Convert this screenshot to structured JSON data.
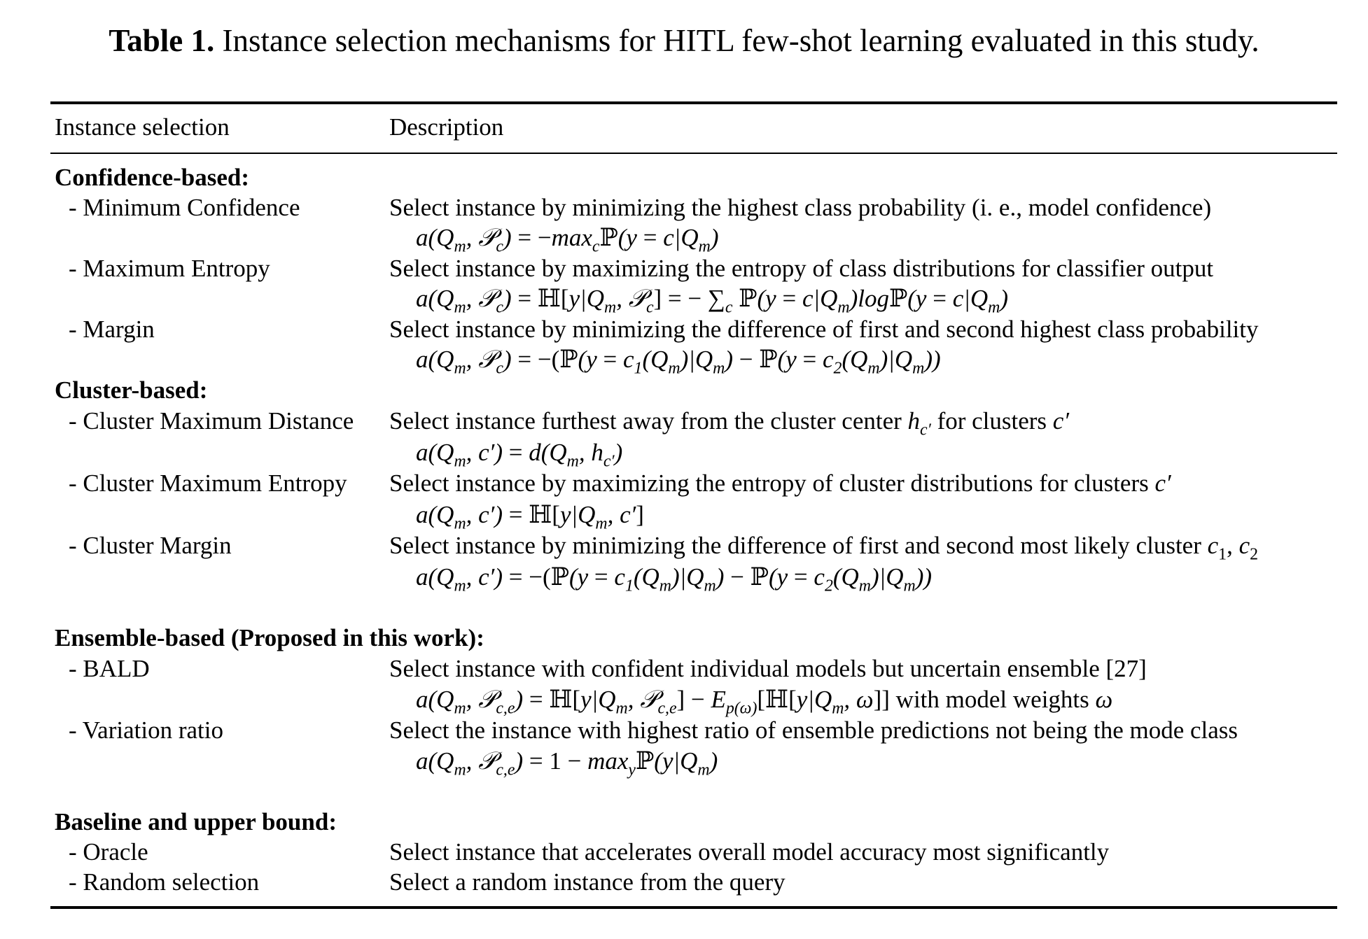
{
  "caption": {
    "label": "Table 1.",
    "text": " Instance selection mechanisms for HITL few-shot learning evaluated in this study."
  },
  "table": {
    "headers": {
      "col1": "Instance selection",
      "col2": "Description"
    },
    "groups": [
      {
        "title": "Confidence-based:",
        "rows": [
          {
            "name": "- Minimum Confidence",
            "description": "Select instance by minimizing the highest class probability (i. e., model confidence)",
            "formula": "a(Qm, Pc) = −maxc ℙ(y = c|Qm)"
          },
          {
            "name": "- Maximum Entropy",
            "description": "Select instance by maximizing the entropy of class distributions for classifier output",
            "formula": "a(Qm, Pc) = ℍ[y|Qm, Pc] = − ∑c ℙ(y = c|Qm)logℙ(y = c|Qm)"
          },
          {
            "name": "- Margin",
            "description": "Select instance by minimizing the difference of first and second highest class probability",
            "formula": "a(Qm, Pc) = −(ℙ(y = c1(Qm)|Qm) − ℙ(y = c2(Qm)|Qm))"
          }
        ]
      },
      {
        "title": "Cluster-based:",
        "rows": [
          {
            "name": "- Cluster Maximum Distance",
            "description": "Select instance furthest away from the cluster center hc′ for clusters c′",
            "formula": "a(Qm, c′) = d(Qm, hc′)"
          },
          {
            "name": "- Cluster Maximum Entropy",
            "description": "Select instance by maximizing the entropy of cluster distributions for clusters c′",
            "formula": "a(Qm, c′) = ℍ[y|Qm, c′]"
          },
          {
            "name": "- Cluster Margin",
            "description": "Select instance by minimizing the difference of first and second most likely cluster c1, c2",
            "formula": "a(Qm, c′) = −(ℙ(y = c1(Qm)|Qm) − ℙ(y = c2(Qm)|Qm))"
          }
        ]
      },
      {
        "title": "Ensemble-based (Proposed in this work):",
        "rows": [
          {
            "name": "- BALD",
            "description": "Select instance with confident individual models but uncertain ensemble [27]",
            "formula": "a(Qm, Pc,e) = ℍ[y|Qm, Pc,e] − Ep(ω)[ℍ[y|Qm, ω]] with model weights ω"
          },
          {
            "name": "- Variation ratio",
            "description": "Select the instance with highest ratio of ensemble predictions not being the mode class",
            "formula": "a(Qm, Pc,e) = 1 − maxy ℙ(y|Qm)"
          }
        ]
      },
      {
        "title": "Baseline and upper bound:",
        "rows": [
          {
            "name": "- Oracle",
            "description": "Select instance that accelerates overall model accuracy most significantly"
          },
          {
            "name": "- Random selection",
            "description": "Select a random instance from the query"
          }
        ]
      }
    ]
  }
}
